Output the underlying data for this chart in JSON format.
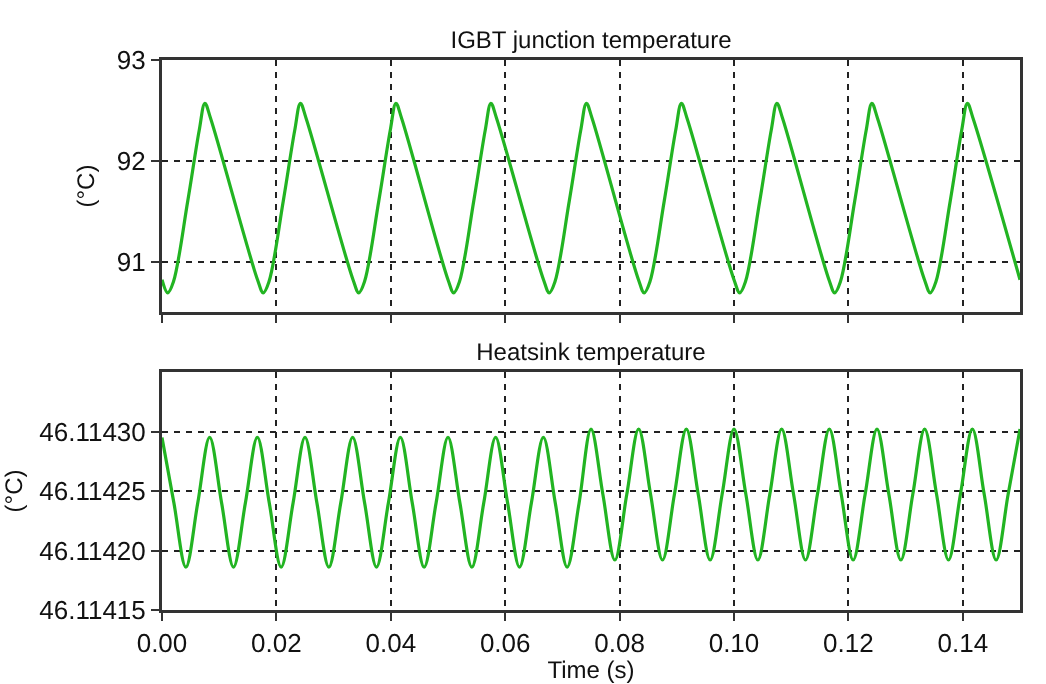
{
  "chart_data": [
    {
      "type": "line",
      "title": "IGBT junction temperature",
      "ylabel": "(°C)",
      "xlim": [
        0,
        0.15
      ],
      "xticks": [
        0,
        0.02,
        0.04,
        0.06,
        0.08,
        0.1,
        0.12,
        0.14
      ],
      "ylim": [
        90.5,
        93
      ],
      "yticks": [
        91,
        92,
        93
      ],
      "grid": true,
      "tick_labels": "y",
      "x": [
        0,
        0.001,
        0.002,
        0.0045,
        0.0065,
        0.0075,
        0.0085,
        0.0167,
        0.0177,
        0.0187,
        0.0212,
        0.0232,
        0.0242,
        0.0252,
        0.0334,
        0.0344,
        0.0354,
        0.0379,
        0.0399,
        0.0409,
        0.0419,
        0.05,
        0.051,
        0.052,
        0.0545,
        0.0565,
        0.0575,
        0.0585,
        0.0667,
        0.0677,
        0.0687,
        0.0712,
        0.0732,
        0.0742,
        0.0752,
        0.0833,
        0.0843,
        0.0853,
        0.0878,
        0.0898,
        0.0908,
        0.0918,
        0.1,
        0.101,
        0.102,
        0.1045,
        0.1065,
        0.1075,
        0.1085,
        0.1166,
        0.1176,
        0.1186,
        0.1211,
        0.1231,
        0.1241,
        0.1251,
        0.1333,
        0.1343,
        0.1353,
        0.1378,
        0.1398,
        0.1408,
        0.1418,
        0.15
      ],
      "series": [
        {
          "color": "#22b422",
          "values": [
            90.82,
            90.69,
            90.8,
            91.6,
            92.3,
            92.57,
            92.42,
            90.82,
            90.69,
            90.8,
            91.6,
            92.3,
            92.57,
            92.42,
            90.82,
            90.69,
            90.8,
            91.6,
            92.3,
            92.57,
            92.42,
            90.82,
            90.69,
            90.8,
            91.6,
            92.3,
            92.57,
            92.42,
            90.82,
            90.69,
            90.8,
            91.6,
            92.3,
            92.57,
            92.42,
            90.82,
            90.69,
            90.8,
            91.6,
            92.3,
            92.57,
            92.42,
            90.82,
            90.69,
            90.8,
            91.6,
            92.3,
            92.57,
            92.42,
            90.82,
            90.69,
            90.8,
            91.6,
            92.3,
            92.57,
            92.42,
            90.82,
            90.69,
            90.8,
            91.6,
            92.3,
            92.57,
            92.42,
            90.82
          ]
        }
      ]
    },
    {
      "type": "line",
      "title": "Heatsink temperature",
      "xlabel": "Time (s)",
      "ylabel": "(°C)",
      "xlim": [
        0,
        0.15
      ],
      "xticks": [
        {
          "value": 0,
          "label": "0.00"
        },
        {
          "value": 0.02,
          "label": "0.02"
        },
        {
          "value": 0.04,
          "label": "0.04"
        },
        {
          "value": 0.06,
          "label": "0.06"
        },
        {
          "value": 0.08,
          "label": "0.08"
        },
        {
          "value": 0.1,
          "label": "0.10"
        },
        {
          "value": 0.12,
          "label": "0.12"
        },
        {
          "value": 0.14,
          "label": "0.14"
        }
      ],
      "ylim": [
        46.11415,
        46.11435
      ],
      "yticks": [
        {
          "value": 46.11415,
          "label": "46.11415"
        },
        {
          "value": 46.1142,
          "label": "46.11420"
        },
        {
          "value": 46.11425,
          "label": "46.11425"
        },
        {
          "value": 46.1143,
          "label": "46.11430"
        }
      ],
      "grid": true,
      "x": [
        0,
        0.00208,
        0.00417,
        0.00625,
        0.00833,
        0.01042,
        0.0125,
        0.01458,
        0.01667,
        0.01875,
        0.02083,
        0.02292,
        0.025,
        0.02708,
        0.02917,
        0.03125,
        0.03333,
        0.03542,
        0.0375,
        0.03958,
        0.04167,
        0.04375,
        0.04583,
        0.04792,
        0.05,
        0.05208,
        0.05417,
        0.05625,
        0.05833,
        0.06042,
        0.0625,
        0.06458,
        0.06667,
        0.06875,
        0.07083,
        0.07292,
        0.075,
        0.07708,
        0.07917,
        0.08125,
        0.08333,
        0.08542,
        0.0875,
        0.08958,
        0.09167,
        0.09375,
        0.09583,
        0.09792,
        0.1,
        0.10208,
        0.10417,
        0.10625,
        0.10833,
        0.11042,
        0.1125,
        0.11458,
        0.11667,
        0.11875,
        0.12083,
        0.12292,
        0.125,
        0.12708,
        0.12917,
        0.13125,
        0.13333,
        0.13542,
        0.1375,
        0.13958,
        0.14167,
        0.14375,
        0.14583,
        0.14792,
        0.15
      ],
      "series": [
        {
          "color": "#22b422",
          "values": [
            46.114295,
            46.11424,
            46.114186,
            46.11424,
            46.114295,
            46.11424,
            46.114186,
            46.11424,
            46.114295,
            46.11424,
            46.114186,
            46.11424,
            46.114295,
            46.11424,
            46.114186,
            46.11424,
            46.114295,
            46.11424,
            46.114186,
            46.11424,
            46.114295,
            46.11424,
            46.114186,
            46.11424,
            46.114295,
            46.11424,
            46.114186,
            46.11424,
            46.114295,
            46.11424,
            46.114186,
            46.11424,
            46.114295,
            46.11424,
            46.114186,
            46.11424,
            46.114302,
            46.114247,
            46.114192,
            46.114247,
            46.114302,
            46.114247,
            46.114192,
            46.114247,
            46.114302,
            46.114247,
            46.114192,
            46.114247,
            46.114302,
            46.114247,
            46.114192,
            46.114247,
            46.114302,
            46.114247,
            46.114192,
            46.114247,
            46.114302,
            46.114247,
            46.114192,
            46.114247,
            46.114302,
            46.114247,
            46.114192,
            46.114247,
            46.114302,
            46.114247,
            46.114192,
            46.114247,
            46.114302,
            46.114247,
            46.114192,
            46.114247,
            46.114302
          ]
        }
      ]
    }
  ]
}
